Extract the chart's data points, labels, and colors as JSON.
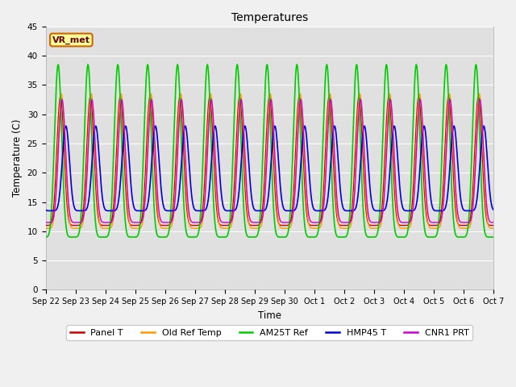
{
  "title": "Temperatures",
  "xlabel": "Time",
  "ylabel": "Temperature (C)",
  "ylim": [
    0,
    45
  ],
  "yticks": [
    0,
    5,
    10,
    15,
    20,
    25,
    30,
    35,
    40,
    45
  ],
  "legend_labels": [
    "Panel T",
    "Old Ref Temp",
    "AM25T Ref",
    "HMP45 T",
    "CNR1 PRT"
  ],
  "legend_colors": [
    "#cc0000",
    "#ff9900",
    "#00cc00",
    "#0000dd",
    "#cc00cc"
  ],
  "annotation_text": "VR_met",
  "annotation_bg": "#ffff99",
  "annotation_border": "#cc6600",
  "n_days": 15,
  "phase_shifts": [
    0.0,
    0.03,
    -0.08,
    0.18,
    0.05
  ],
  "amp_maxes": [
    33.0,
    33.5,
    38.5,
    28.0,
    32.5
  ],
  "amp_mins": [
    11.0,
    10.5,
    9.0,
    13.5,
    11.5
  ],
  "peak_sharpness": 3.5,
  "line_widths": [
    1.0,
    1.0,
    1.2,
    1.2,
    1.0
  ],
  "figure_width": 6.4,
  "figure_height": 4.8,
  "dpi": 100
}
